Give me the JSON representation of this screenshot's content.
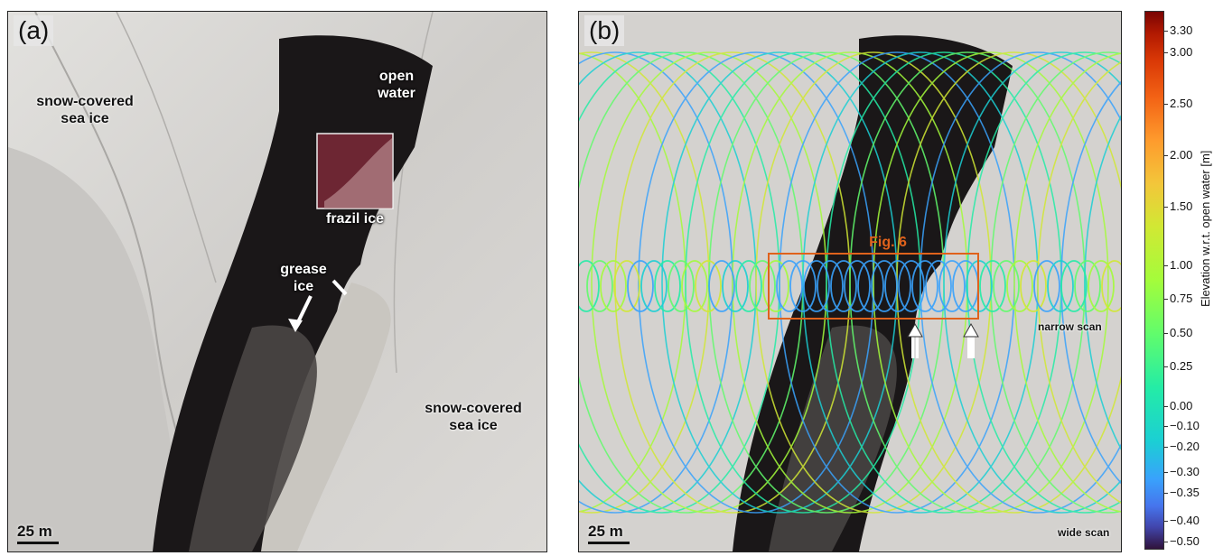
{
  "panel_a": {
    "label": "(a)",
    "annotations": {
      "snow_ice_left": "snow-covered\nsea ice",
      "open_water": "open\nwater",
      "frazil_ice": "frazil ice",
      "grease_ice": "grease\nice",
      "snow_ice_right": "snow-covered\nsea ice"
    },
    "scale_bar": "25 m"
  },
  "panel_b": {
    "label": "(b)",
    "fig_ref": "Fig. 6",
    "narrow_scan": "narrow scan",
    "wide_scan": "wide scan",
    "scale_bar": "25 m"
  },
  "colorbar": {
    "title": "Elevation w.r.t. open water [m]",
    "ticks": [
      "3.30",
      "3.00",
      "2.50",
      "2.00",
      "1.50",
      "1.00",
      "0.75",
      "0.50",
      "0.25",
      "0.00",
      "−0.10",
      "−0.20",
      "−0.30",
      "−0.35",
      "−0.40",
      "−0.50"
    ],
    "colormap_colors": [
      "#30123b",
      "#4675ed",
      "#1bcfd4",
      "#61fc6c",
      "#d1e834",
      "#fe9b2d",
      "#d93806",
      "#7a0403"
    ]
  },
  "colors": {
    "fig_ref": "#e0621c",
    "open_water": "#1a1718",
    "sea_ice": "#d4d2cf"
  }
}
